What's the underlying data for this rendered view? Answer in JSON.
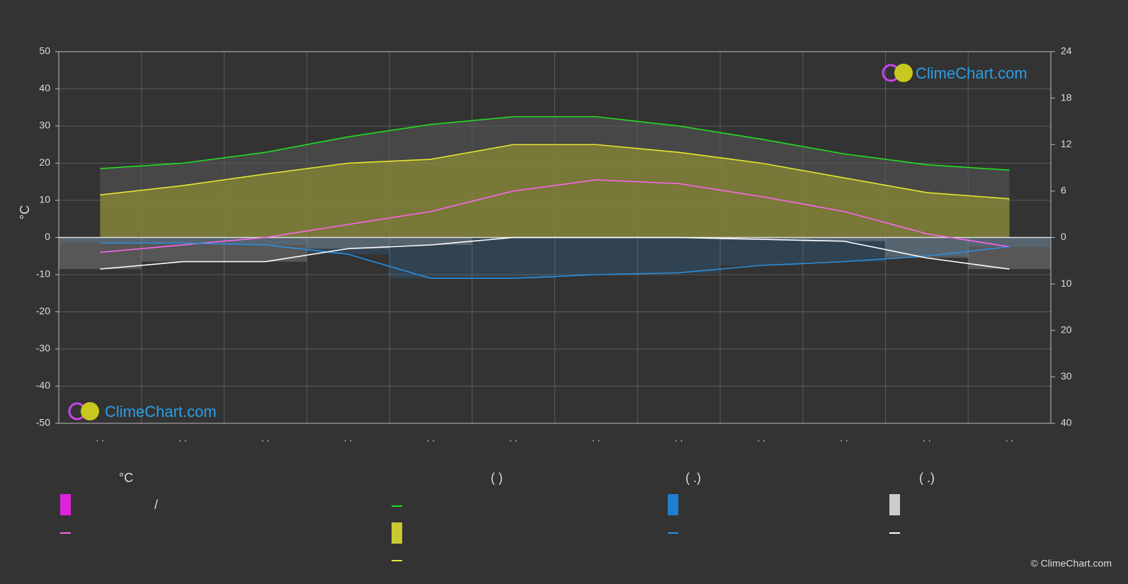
{
  "chart_data": {
    "type": "line",
    "categories": [
      ". .",
      ". .",
      ". .",
      ". .",
      ". .",
      ". .",
      ". .",
      ". .",
      ". .",
      ". .",
      ". .",
      ". ."
    ],
    "y_label": "°C",
    "ylim": [
      -50,
      50
    ],
    "yticks": [
      -50,
      -40,
      -30,
      -20,
      -10,
      0,
      10,
      20,
      30,
      40,
      50
    ],
    "y2lim": [
      0,
      24
    ],
    "y2ticks": [
      0,
      6,
      12,
      18,
      24
    ],
    "y3lim": [
      0,
      40
    ],
    "y3ticks": [
      10,
      20,
      30,
      40
    ],
    "grid": true,
    "series": [
      {
        "name": "",
        "color": "#22dd22",
        "axis": "y2",
        "values": [
          8.9,
          9.6,
          11,
          13,
          14.6,
          15.6,
          15.6,
          14.4,
          12.7,
          10.8,
          9.4,
          8.7
        ]
      },
      {
        "name": "",
        "color": "#e6e632",
        "axis": "y2",
        "values": [
          5.5,
          6.7,
          8.2,
          9.6,
          10.1,
          12,
          12,
          11,
          9.6,
          7.7,
          5.8,
          5.0
        ]
      },
      {
        "name": "",
        "color": "#ff66ee",
        "axis": "y",
        "values": [
          -4,
          -2,
          0,
          3.5,
          7,
          12.5,
          15.5,
          14.5,
          11,
          7,
          1,
          -2.5
        ]
      },
      {
        "name": "",
        "color": "#2a8fe0",
        "axis": "y3",
        "values": [
          1.2,
          1.2,
          1.6,
          3.6,
          8.8,
          8.8,
          8,
          7.6,
          6,
          5.2,
          4,
          2
        ]
      },
      {
        "name": "",
        "color": "#ffffff",
        "axis": "y3",
        "values": [
          6.8,
          5.2,
          5.2,
          2.4,
          1.6,
          0,
          0,
          0,
          0.4,
          0.8,
          4.4,
          6.8
        ]
      }
    ],
    "legend_headers": [
      "°C",
      "(          )",
      "(   .)",
      "(   .)"
    ],
    "legend_slash": "/",
    "logo": "ClimeChart.com",
    "copyright": "© ClimeChart.com"
  }
}
